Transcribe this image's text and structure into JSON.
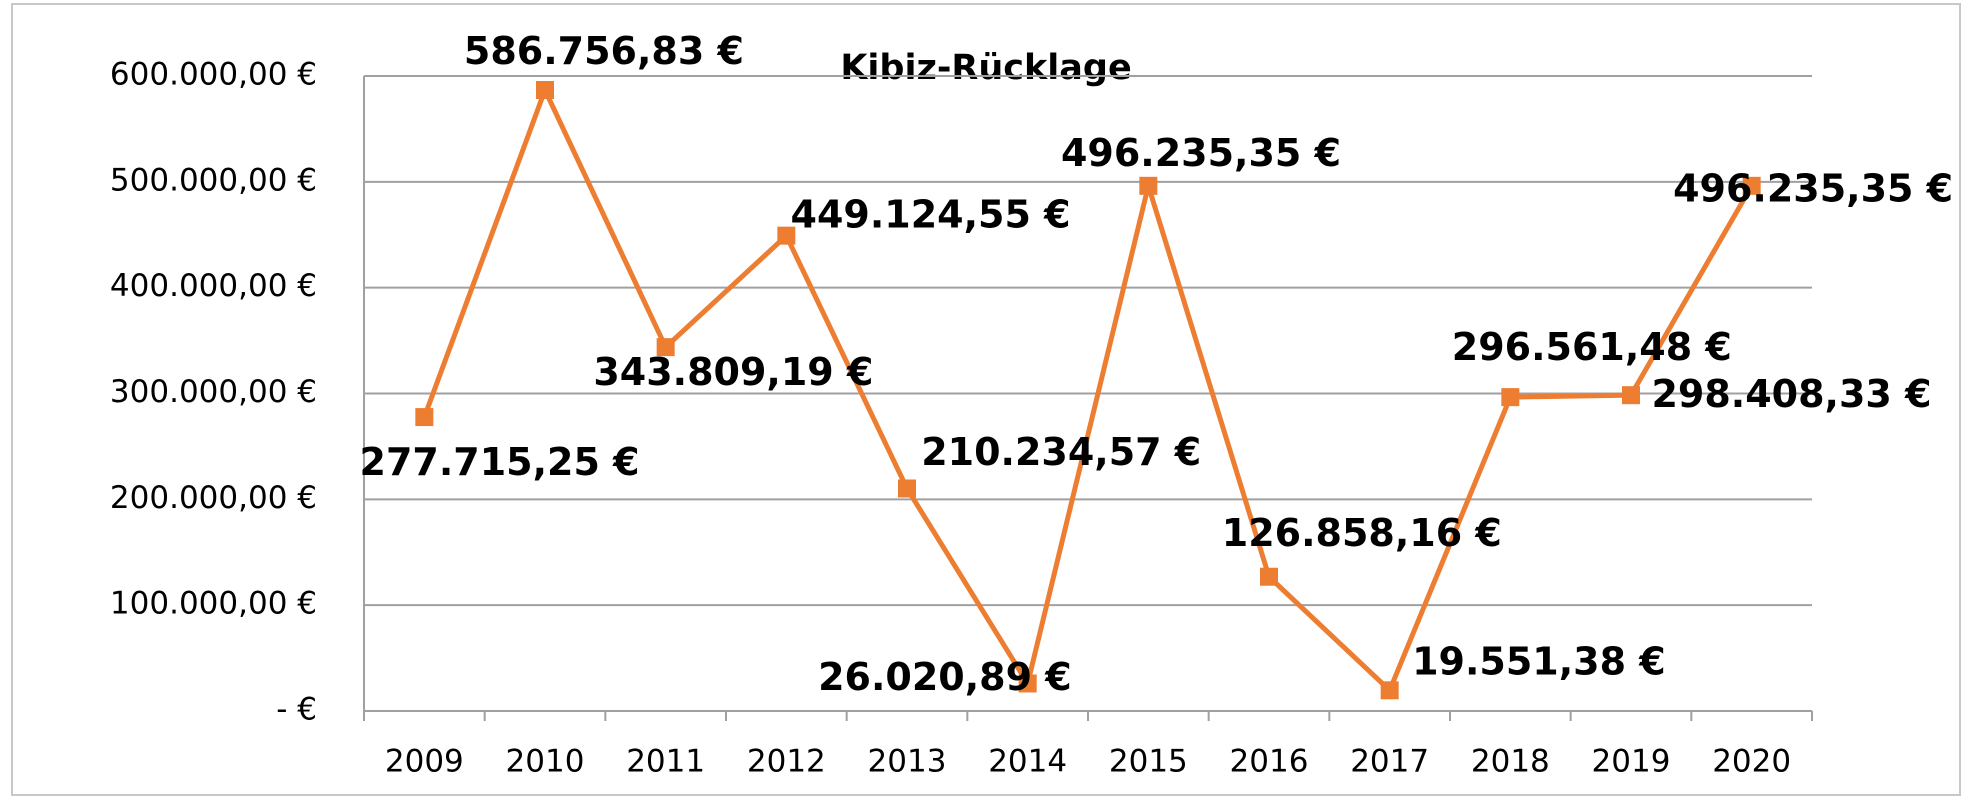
{
  "chart_data": {
    "type": "line",
    "title": "Kibiz-Rücklage",
    "categories": [
      "2009",
      "2010",
      "2011",
      "2012",
      "2013",
      "2014",
      "2015",
      "2016",
      "2017",
      "2018",
      "2019",
      "2020"
    ],
    "series": [
      {
        "name": "Kibiz-Rücklage",
        "color": "#ed7d31",
        "values": [
          277715.25,
          586756.83,
          343809.19,
          449124.55,
          210234.57,
          26020.89,
          496235.35,
          126858.16,
          19551.38,
          296561.48,
          298408.33,
          496235.35
        ],
        "value_labels": [
          "277.715,25 €",
          "586.756,83 €",
          "343.809,19 €",
          "449.124,55 €",
          "210.234,57 €",
          "26.020,89 €",
          "496.235,35 €",
          "126.858,16 €",
          "19.551,38 €",
          "296.561,48 €",
          "298.408,33 €",
          "496.235,35 €"
        ]
      }
    ],
    "ylim": [
      0,
      600000
    ],
    "yticks": [
      {
        "value": 0,
        "label": "-   €"
      },
      {
        "value": 100000,
        "label": "100.000,00 €"
      },
      {
        "value": 200000,
        "label": "200.000,00 €"
      },
      {
        "value": 300000,
        "label": "300.000,00 €"
      },
      {
        "value": 400000,
        "label": "400.000,00 €"
      },
      {
        "value": 500000,
        "label": "500.000,00 €"
      },
      {
        "value": 600000,
        "label": "600.000,00 €"
      }
    ],
    "grid": true
  }
}
